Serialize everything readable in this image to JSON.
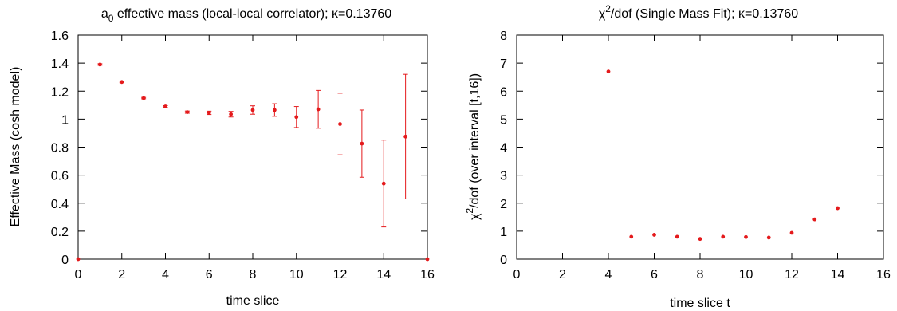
{
  "chart_data": [
    {
      "type": "scatter",
      "title_main": "a",
      "title_sub": "0",
      "title_rest": " effective mass (local-local correlator); κ=0.13760",
      "xlabel": "time slice",
      "ylabel": "Effective Mass (cosh model)",
      "xlim": [
        0,
        16
      ],
      "ylim": [
        0,
        1.6
      ],
      "xticks": [
        0,
        2,
        4,
        6,
        8,
        10,
        12,
        14,
        16
      ],
      "yticks": [
        "0",
        "0.2",
        "0.4",
        "0.6",
        "0.8",
        "1",
        "1.2",
        "1.4",
        "1.6"
      ],
      "ytick_values": [
        0,
        0.2,
        0.4,
        0.6,
        0.8,
        1.0,
        1.2,
        1.4,
        1.6
      ],
      "color": "#e41a1c",
      "points": [
        {
          "x": 0,
          "y": 0.0,
          "err": 0.0
        },
        {
          "x": 1,
          "y": 1.39,
          "err": 0.005
        },
        {
          "x": 2,
          "y": 1.265,
          "err": 0.005
        },
        {
          "x": 3,
          "y": 1.15,
          "err": 0.005
        },
        {
          "x": 4,
          "y": 1.09,
          "err": 0.006
        },
        {
          "x": 5,
          "y": 1.05,
          "err": 0.008
        },
        {
          "x": 6,
          "y": 1.045,
          "err": 0.012
        },
        {
          "x": 7,
          "y": 1.035,
          "err": 0.02
        },
        {
          "x": 8,
          "y": 1.065,
          "err": 0.03
        },
        {
          "x": 9,
          "y": 1.065,
          "err": 0.045
        },
        {
          "x": 10,
          "y": 1.015,
          "err": 0.075
        },
        {
          "x": 11,
          "y": 1.07,
          "err": 0.135
        },
        {
          "x": 12,
          "y": 0.965,
          "err": 0.22
        },
        {
          "x": 13,
          "y": 0.825,
          "err": 0.24
        },
        {
          "x": 14,
          "y": 0.54,
          "err": 0.31
        },
        {
          "x": 15,
          "y": 0.875,
          "err": 0.445
        },
        {
          "x": 16,
          "y": 0.0,
          "err": 0.0
        }
      ]
    },
    {
      "type": "scatter",
      "title_main": "χ",
      "title_sup": "2",
      "title_rest": "/dof (Single Mass Fit); κ=0.13760",
      "xlabel": "time slice t",
      "ylabel_main": "χ",
      "ylabel_sup": "2",
      "ylabel_rest": "/dof (over interval [t,16])",
      "xlim": [
        0,
        16
      ],
      "ylim": [
        0,
        8
      ],
      "xticks": [
        0,
        2,
        4,
        6,
        8,
        10,
        12,
        14,
        16
      ],
      "yticks": [
        "0",
        "1",
        "2",
        "3",
        "4",
        "5",
        "6",
        "7",
        "8"
      ],
      "ytick_values": [
        0,
        1,
        2,
        3,
        4,
        5,
        6,
        7,
        8
      ],
      "color": "#e41a1c",
      "points": [
        {
          "x": 4,
          "y": 6.7
        },
        {
          "x": 5,
          "y": 0.8
        },
        {
          "x": 6,
          "y": 0.87
        },
        {
          "x": 7,
          "y": 0.8
        },
        {
          "x": 8,
          "y": 0.72
        },
        {
          "x": 9,
          "y": 0.8
        },
        {
          "x": 10,
          "y": 0.79
        },
        {
          "x": 11,
          "y": 0.77
        },
        {
          "x": 12,
          "y": 0.94
        },
        {
          "x": 13,
          "y": 1.42
        },
        {
          "x": 14,
          "y": 1.82
        }
      ]
    }
  ]
}
